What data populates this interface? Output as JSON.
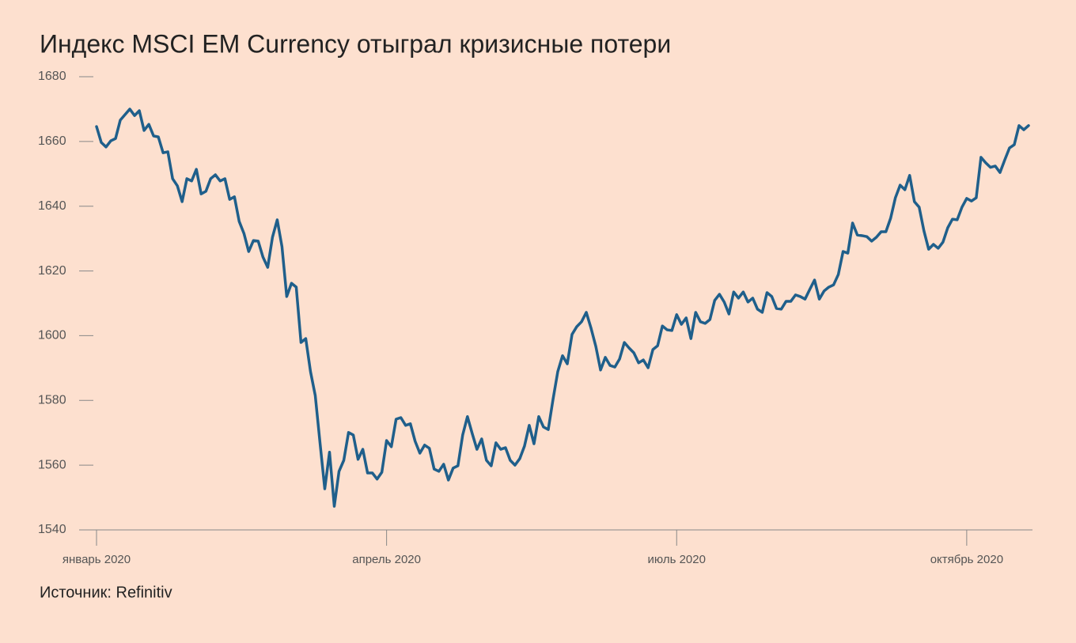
{
  "chart_data": {
    "type": "line",
    "title": "Индекс MSCI EM Currency отыграл кризисные потери",
    "source": "Источник: Refinitiv",
    "categories": [
      "январь 2020",
      null,
      null,
      null,
      null,
      null,
      null,
      null,
      null,
      null,
      null,
      null,
      null,
      null,
      null,
      null,
      null,
      null,
      null,
      null,
      null,
      null,
      null,
      null,
      null,
      null,
      null,
      null,
      null,
      null,
      null,
      null,
      null,
      null,
      null,
      null,
      null,
      null,
      null,
      null,
      null,
      null,
      null,
      null,
      null,
      null,
      null,
      null,
      null,
      null,
      null,
      null,
      null,
      null,
      null,
      null,
      null,
      null,
      null,
      null,
      null,
      "апрель 2020",
      null,
      null,
      null,
      null,
      null,
      null,
      null,
      null,
      null,
      null,
      null,
      null,
      null,
      null,
      null,
      null,
      null,
      null,
      null,
      null,
      null,
      null,
      null,
      null,
      null,
      null,
      null,
      null,
      null,
      null,
      null,
      null,
      null,
      null,
      null,
      null,
      null,
      null,
      null,
      null,
      null,
      null,
      null,
      null,
      null,
      null,
      null,
      null,
      null,
      null,
      null,
      null,
      null,
      null,
      null,
      null,
      null,
      null,
      null,
      null,
      "июль 2020",
      null,
      null,
      null,
      null,
      null,
      null,
      null,
      null,
      null,
      null,
      null,
      null,
      null,
      null,
      null,
      null,
      null,
      null,
      null,
      null,
      null,
      null,
      null,
      null,
      null,
      null,
      null,
      null,
      null,
      null,
      null,
      null,
      null,
      null,
      null,
      null,
      null,
      null,
      null,
      null,
      null,
      null,
      null,
      null,
      null,
      null,
      null,
      null,
      null,
      null,
      null,
      null,
      null,
      null,
      null,
      null,
      null,
      null,
      null,
      null,
      "октябрь 2020",
      null,
      null,
      null,
      null,
      null,
      null,
      null,
      null,
      null,
      null,
      null,
      null,
      null
    ],
    "series": [
      {
        "name": "MSCI EM Currency",
        "color": "#1f5f8b",
        "values": [
          1664.6,
          1659.7,
          1658.3,
          1660.2,
          1660.9,
          1666.6,
          1668.3,
          1670,
          1668,
          1669.5,
          1663.4,
          1665.3,
          1661.7,
          1661.4,
          1656.5,
          1656.8,
          1648.5,
          1646.3,
          1641.4,
          1648.5,
          1647.8,
          1651.4,
          1643.8,
          1644.6,
          1648.5,
          1649.7,
          1647.8,
          1648.5,
          1642.1,
          1642.9,
          1635.3,
          1631.6,
          1626,
          1629.4,
          1629.2,
          1624.3,
          1621.1,
          1630.4,
          1635.8,
          1627.5,
          1612.1,
          1616.2,
          1615,
          1597.9,
          1599.1,
          1588.9,
          1581.5,
          1566.9,
          1552.7,
          1564,
          1547.3,
          1558.1,
          1561.5,
          1570.1,
          1569.3,
          1561.8,
          1564.9,
          1557.6,
          1557.6,
          1555.7,
          1557.8,
          1567.6,
          1565.7,
          1574.2,
          1574.7,
          1572.3,
          1572.8,
          1567.4,
          1563.7,
          1566.2,
          1565.2,
          1558.8,
          1558.1,
          1560.3,
          1555.4,
          1559.1,
          1559.8,
          1569.3,
          1575,
          1569.8,
          1564.9,
          1568.1,
          1561.5,
          1559.8,
          1566.9,
          1564.9,
          1565.4,
          1561.5,
          1560,
          1562,
          1565.9,
          1572.3,
          1566.6,
          1575,
          1571.8,
          1571,
          1580.3,
          1588.9,
          1593.8,
          1591.3,
          1600.4,
          1602.8,
          1604.3,
          1607.2,
          1602.3,
          1596.7,
          1589.4,
          1593.3,
          1590.8,
          1590.3,
          1592.8,
          1597.9,
          1596.2,
          1594.7,
          1591.6,
          1592.5,
          1590.1,
          1595.7,
          1596.9,
          1603,
          1601.8,
          1601.6,
          1606.5,
          1603.5,
          1605.5,
          1599.1,
          1607.2,
          1604.3,
          1603.8,
          1605,
          1610.9,
          1612.8,
          1610.4,
          1606.7,
          1613.5,
          1611.6,
          1613.5,
          1610.4,
          1611.6,
          1608.2,
          1607.2,
          1613.3,
          1612.1,
          1608.4,
          1608.2,
          1610.6,
          1610.6,
          1612.6,
          1612.1,
          1611.3,
          1614.3,
          1617.2,
          1611.3,
          1613.8,
          1615,
          1615.7,
          1618.9,
          1626,
          1625.5,
          1634.8,
          1631.1,
          1630.9,
          1630.6,
          1629.2,
          1630.4,
          1632.1,
          1632.1,
          1636.3,
          1642.6,
          1646.5,
          1645.1,
          1649.5,
          1641.4,
          1639.7,
          1632.4,
          1626.7,
          1628.2,
          1627,
          1628.9,
          1633.3,
          1636,
          1635.8,
          1639.7,
          1642.4,
          1641.6,
          1642.6,
          1655.1,
          1653.4,
          1652,
          1652.4,
          1650.4,
          1654.3,
          1658,
          1659,
          1664.9,
          1663.6,
          1664.9
        ]
      }
    ],
    "ylim": [
      1540,
      1680
    ],
    "yticks": [
      1540,
      1560,
      1580,
      1600,
      1620,
      1640,
      1660,
      1680
    ]
  }
}
